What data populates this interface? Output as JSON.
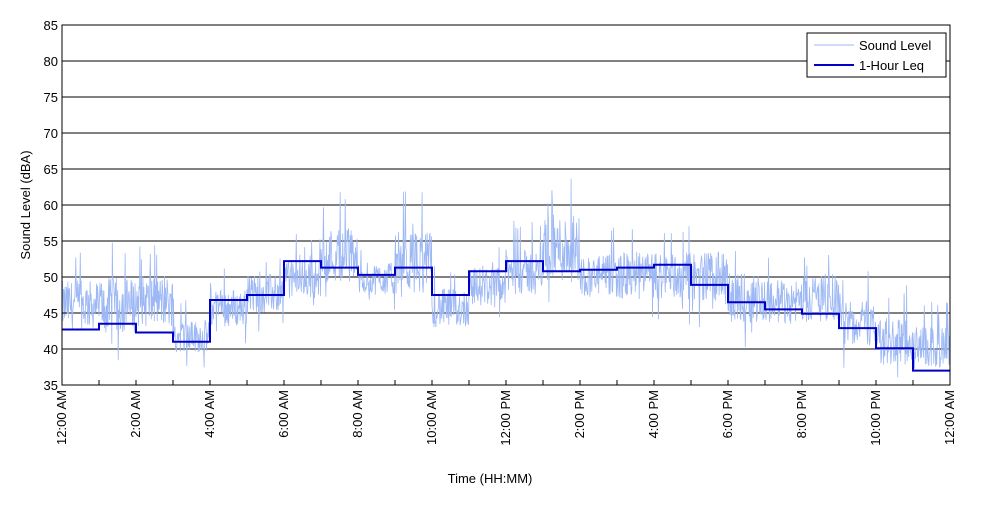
{
  "chart_data": {
    "type": "line",
    "title": "",
    "xlabel": "Time (HH:MM)",
    "ylabel": "Sound Level (dBA)",
    "ylim": [
      35,
      85
    ],
    "yticks": [
      35,
      40,
      45,
      50,
      55,
      60,
      65,
      70,
      75,
      80,
      85
    ],
    "xlim": [
      "12:00 AM",
      "12:00 AM"
    ],
    "xticks": [
      "12:00 AM",
      "2:00 AM",
      "4:00 AM",
      "6:00 AM",
      "8:00 AM",
      "10:00 AM",
      "12:00 PM",
      "2:00 PM",
      "4:00 PM",
      "6:00 PM",
      "8:00 PM",
      "10:00 PM",
      "12:00 AM"
    ],
    "grid": "horizontal",
    "legend": {
      "position": "top-right",
      "entries": [
        "Sound Level",
        "1-Hour Leq"
      ]
    },
    "series": [
      {
        "name": "Sound Level",
        "color": "#9db8f5",
        "style": "thin line, dense 1-second samples",
        "note_values": "hourly typical levels (min/max envelope estimated)",
        "hourly_range": [
          [
            39,
            54
          ],
          [
            38,
            55
          ],
          [
            39,
            55
          ],
          [
            37,
            47
          ],
          [
            40,
            52
          ],
          [
            42,
            54
          ],
          [
            44,
            56
          ],
          [
            45,
            62
          ],
          [
            45,
            55
          ],
          [
            43,
            62
          ],
          [
            40,
            52
          ],
          [
            43,
            55
          ],
          [
            44,
            58
          ],
          [
            44,
            65
          ],
          [
            44,
            57
          ],
          [
            43,
            58
          ],
          [
            43,
            58
          ],
          [
            43,
            58
          ],
          [
            40,
            55
          ],
          [
            40,
            54
          ],
          [
            40,
            55
          ],
          [
            37,
            51
          ],
          [
            34,
            49
          ],
          [
            34,
            47
          ]
        ]
      },
      {
        "name": "1-Hour Leq",
        "color": "#0000c8",
        "style": "thick step line",
        "x_hours": [
          0,
          1,
          2,
          3,
          4,
          5,
          6,
          7,
          8,
          9,
          10,
          11,
          12,
          13,
          14,
          15,
          16,
          17,
          18,
          19,
          20,
          21,
          22,
          23
        ],
        "values": [
          42.7,
          43.5,
          42.3,
          41.0,
          46.8,
          47.5,
          52.2,
          51.3,
          50.3,
          51.3,
          47.5,
          50.8,
          52.2,
          50.8,
          51.0,
          51.3,
          51.7,
          48.9,
          46.5,
          45.5,
          44.9,
          42.9,
          40.1,
          37.0
        ]
      }
    ]
  }
}
